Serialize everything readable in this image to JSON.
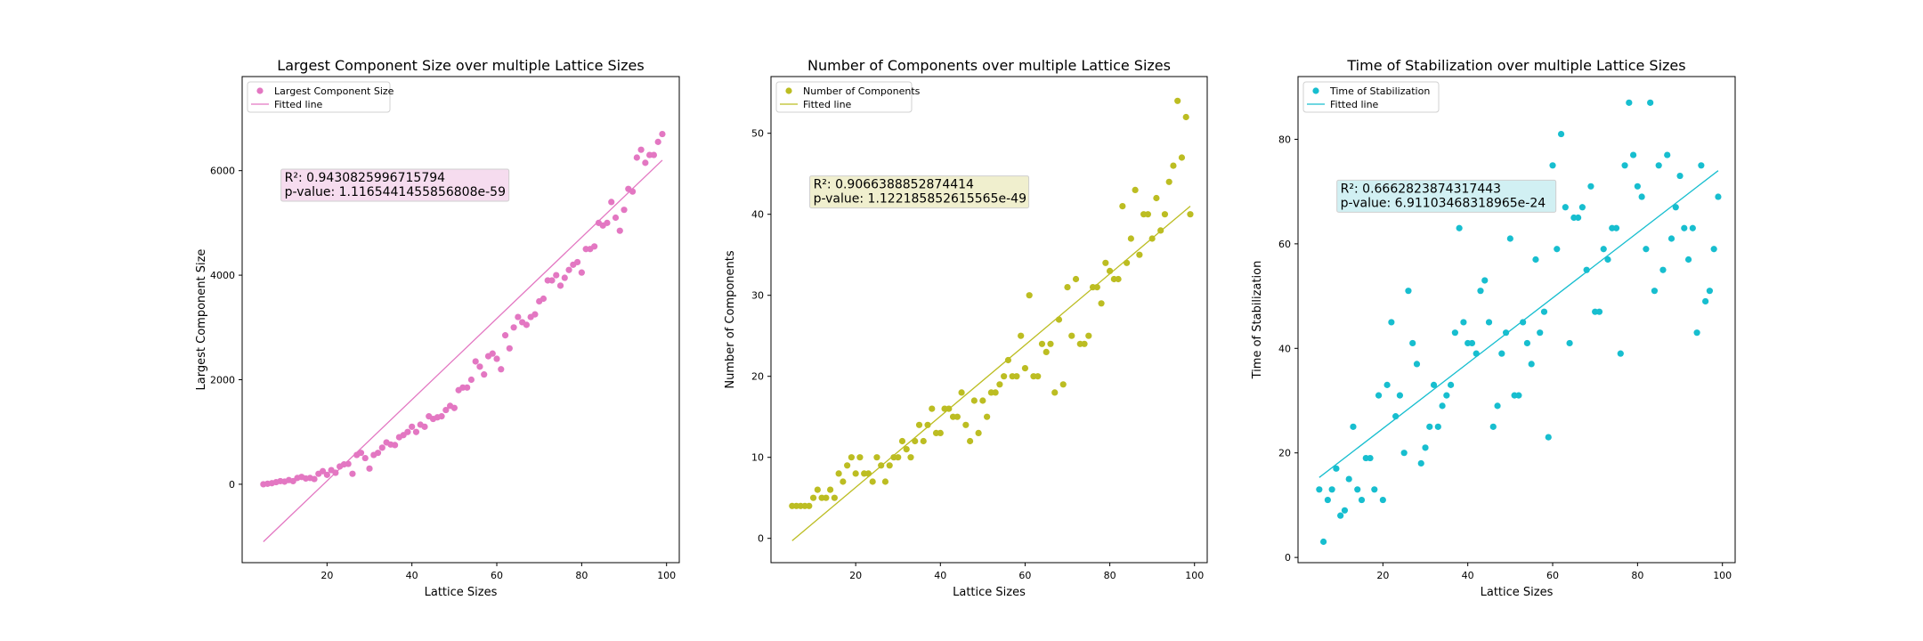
{
  "chart_data": [
    {
      "type": "scatter",
      "title": "Largest Component Size over multiple Lattice Sizes",
      "xlabel": "Lattice Sizes",
      "ylabel": "Largest Component Size",
      "xlim": [
        0,
        103
      ],
      "ylim": [
        -1500,
        7800
      ],
      "xticks": [
        20,
        40,
        60,
        80,
        100
      ],
      "yticks": [
        0,
        2000,
        4000,
        6000
      ],
      "color": "#e377c2",
      "legend_position": "upper-left",
      "legend": [
        "Largest Component Size",
        "Fitted line"
      ],
      "annotation": {
        "r2": "R²: 0.9430825996715794",
        "pvalue": "p-value: 1.1165441455856808e-59",
        "x": 10,
        "y": 5960,
        "bg": "#f6dcef"
      },
      "fit": {
        "x0": 5,
        "y0": -1100,
        "x1": 99,
        "y1": 6200
      },
      "x": [
        5,
        6,
        7,
        8,
        9,
        10,
        11,
        12,
        13,
        14,
        15,
        16,
        17,
        18,
        19,
        20,
        21,
        22,
        23,
        24,
        25,
        26,
        27,
        28,
        29,
        30,
        31,
        32,
        33,
        34,
        35,
        36,
        37,
        38,
        39,
        40,
        41,
        42,
        43,
        44,
        45,
        46,
        47,
        48,
        49,
        50,
        51,
        52,
        53,
        54,
        55,
        56,
        57,
        58,
        59,
        60,
        61,
        62,
        63,
        64,
        65,
        66,
        67,
        68,
        69,
        70,
        71,
        72,
        73,
        74,
        75,
        76,
        77,
        78,
        79,
        80,
        81,
        82,
        83,
        84,
        85,
        86,
        87,
        88,
        89,
        90,
        91,
        92,
        93,
        94,
        95,
        96,
        97,
        98,
        99
      ],
      "values": [
        0,
        10,
        20,
        40,
        60,
        50,
        80,
        60,
        120,
        140,
        110,
        120,
        100,
        200,
        250,
        180,
        270,
        220,
        340,
        380,
        390,
        200,
        560,
        600,
        500,
        300,
        560,
        600,
        700,
        800,
        760,
        750,
        900,
        940,
        1000,
        1100,
        1000,
        1140,
        1100,
        1300,
        1250,
        1280,
        1300,
        1420,
        1500,
        1460,
        1800,
        1850,
        1850,
        2000,
        2350,
        2250,
        2100,
        2450,
        2500,
        2400,
        2200,
        2850,
        2600,
        3000,
        3200,
        3100,
        3050,
        3200,
        3250,
        3500,
        3550,
        3900,
        3900,
        4000,
        3800,
        3950,
        4100,
        4200,
        4250,
        4050,
        4500,
        4500,
        4550,
        5000,
        4950,
        5000,
        5400,
        5100,
        4850,
        5250,
        5650,
        5600,
        6250,
        6400,
        6150,
        6300,
        6300,
        6550,
        6700
      ]
    },
    {
      "type": "scatter",
      "title": "Number of Components over multiple Lattice Sizes",
      "xlabel": "Lattice Sizes",
      "ylabel": "Number of Components",
      "xlim": [
        0,
        103
      ],
      "ylim": [
        -3,
        57
      ],
      "xticks": [
        20,
        40,
        60,
        80,
        100
      ],
      "yticks": [
        0,
        10,
        20,
        30,
        40,
        50
      ],
      "color": "#bcbd22",
      "legend_position": "upper-left",
      "legend": [
        "Number of Components",
        "Fitted line"
      ],
      "annotation": {
        "r2": "R²: 0.9066388852874414",
        "pvalue": "p-value: 1.122185852615565e-49",
        "x": 10,
        "y": 44.3,
        "bg": "#f0efce"
      },
      "fit": {
        "x0": 5,
        "y0": -0.3,
        "x1": 99,
        "y1": 41
      },
      "x": [
        5,
        6,
        7,
        8,
        9,
        10,
        11,
        12,
        13,
        14,
        15,
        16,
        17,
        18,
        19,
        20,
        21,
        22,
        23,
        24,
        25,
        26,
        27,
        28,
        29,
        30,
        31,
        32,
        33,
        34,
        35,
        36,
        37,
        38,
        39,
        40,
        41,
        42,
        43,
        44,
        45,
        46,
        47,
        48,
        49,
        50,
        51,
        52,
        53,
        54,
        55,
        56,
        57,
        58,
        59,
        60,
        61,
        62,
        63,
        64,
        65,
        66,
        67,
        68,
        69,
        70,
        71,
        72,
        73,
        74,
        75,
        76,
        77,
        78,
        79,
        80,
        81,
        82,
        83,
        84,
        85,
        86,
        87,
        88,
        89,
        90,
        91,
        92,
        93,
        94,
        95,
        96,
        97,
        98,
        99
      ],
      "values": [
        4,
        4,
        4,
        4,
        4,
        5,
        6,
        5,
        5,
        6,
        5,
        8,
        7,
        9,
        10,
        8,
        10,
        8,
        8,
        7,
        10,
        9,
        7,
        9,
        10,
        10,
        12,
        11,
        10,
        12,
        14,
        12,
        14,
        16,
        13,
        13,
        16,
        16,
        15,
        15,
        18,
        14,
        12,
        17,
        13,
        17,
        15,
        18,
        18,
        19,
        20,
        22,
        20,
        20,
        25,
        21,
        30,
        20,
        20,
        24,
        23,
        24,
        18,
        27,
        19,
        31,
        25,
        32,
        24,
        24,
        25,
        31,
        31,
        29,
        34,
        33,
        32,
        32,
        41,
        34,
        37,
        43,
        35,
        40,
        40,
        37,
        42,
        38,
        40,
        44,
        46,
        54,
        47,
        52,
        40
      ]
    },
    {
      "type": "scatter",
      "title": "Time of Stabilization over multiple Lattice Sizes",
      "xlabel": "Lattice Sizes",
      "ylabel": "Time of Stabilization",
      "xlim": [
        0,
        103
      ],
      "ylim": [
        -1,
        92
      ],
      "xticks": [
        20,
        40,
        60,
        80,
        100
      ],
      "yticks": [
        0,
        20,
        40,
        60,
        80
      ],
      "color": "#17becf",
      "legend_position": "upper-left",
      "legend": [
        "Time of Stabilization",
        "Fitted line"
      ],
      "annotation": {
        "r2": "R²: 0.6662823874317443",
        "pvalue": "p-value: 6.91103468318965e-24",
        "x": 10,
        "y": 71.5,
        "bg": "#d1f0f3"
      },
      "fit": {
        "x0": 5,
        "y0": 15.3,
        "x1": 99,
        "y1": 74
      },
      "x": [
        5,
        6,
        7,
        8,
        9,
        10,
        11,
        12,
        13,
        14,
        15,
        16,
        17,
        18,
        19,
        20,
        21,
        22,
        23,
        24,
        25,
        26,
        27,
        28,
        29,
        30,
        31,
        32,
        33,
        34,
        35,
        36,
        37,
        38,
        39,
        40,
        41,
        42,
        43,
        44,
        45,
        46,
        47,
        48,
        49,
        50,
        51,
        52,
        53,
        54,
        55,
        56,
        57,
        58,
        59,
        60,
        61,
        62,
        63,
        64,
        65,
        66,
        67,
        68,
        69,
        70,
        71,
        72,
        73,
        74,
        75,
        76,
        77,
        78,
        79,
        80,
        81,
        82,
        83,
        84,
        85,
        86,
        87,
        88,
        89,
        90,
        91,
        92,
        93,
        94,
        95,
        96,
        97,
        98,
        99
      ],
      "values": [
        13,
        3,
        11,
        13,
        17,
        8,
        9,
        15,
        25,
        13,
        11,
        19,
        19,
        13,
        31,
        11,
        33,
        45,
        27,
        31,
        20,
        51,
        41,
        37,
        18,
        21,
        25,
        33,
        25,
        29,
        31,
        33,
        43,
        63,
        45,
        41,
        41,
        39,
        51,
        53,
        45,
        25,
        29,
        39,
        43,
        61,
        31,
        31,
        45,
        41,
        37,
        57,
        43,
        47,
        23,
        75,
        59,
        81,
        67,
        41,
        65,
        65,
        67,
        55,
        71,
        47,
        47,
        59,
        57,
        63,
        63,
        39,
        75,
        87,
        77,
        71,
        69,
        59,
        87,
        51,
        75,
        55,
        77,
        61,
        67,
        73,
        63,
        57,
        63,
        43,
        75,
        49,
        51,
        59,
        69
      ]
    }
  ]
}
